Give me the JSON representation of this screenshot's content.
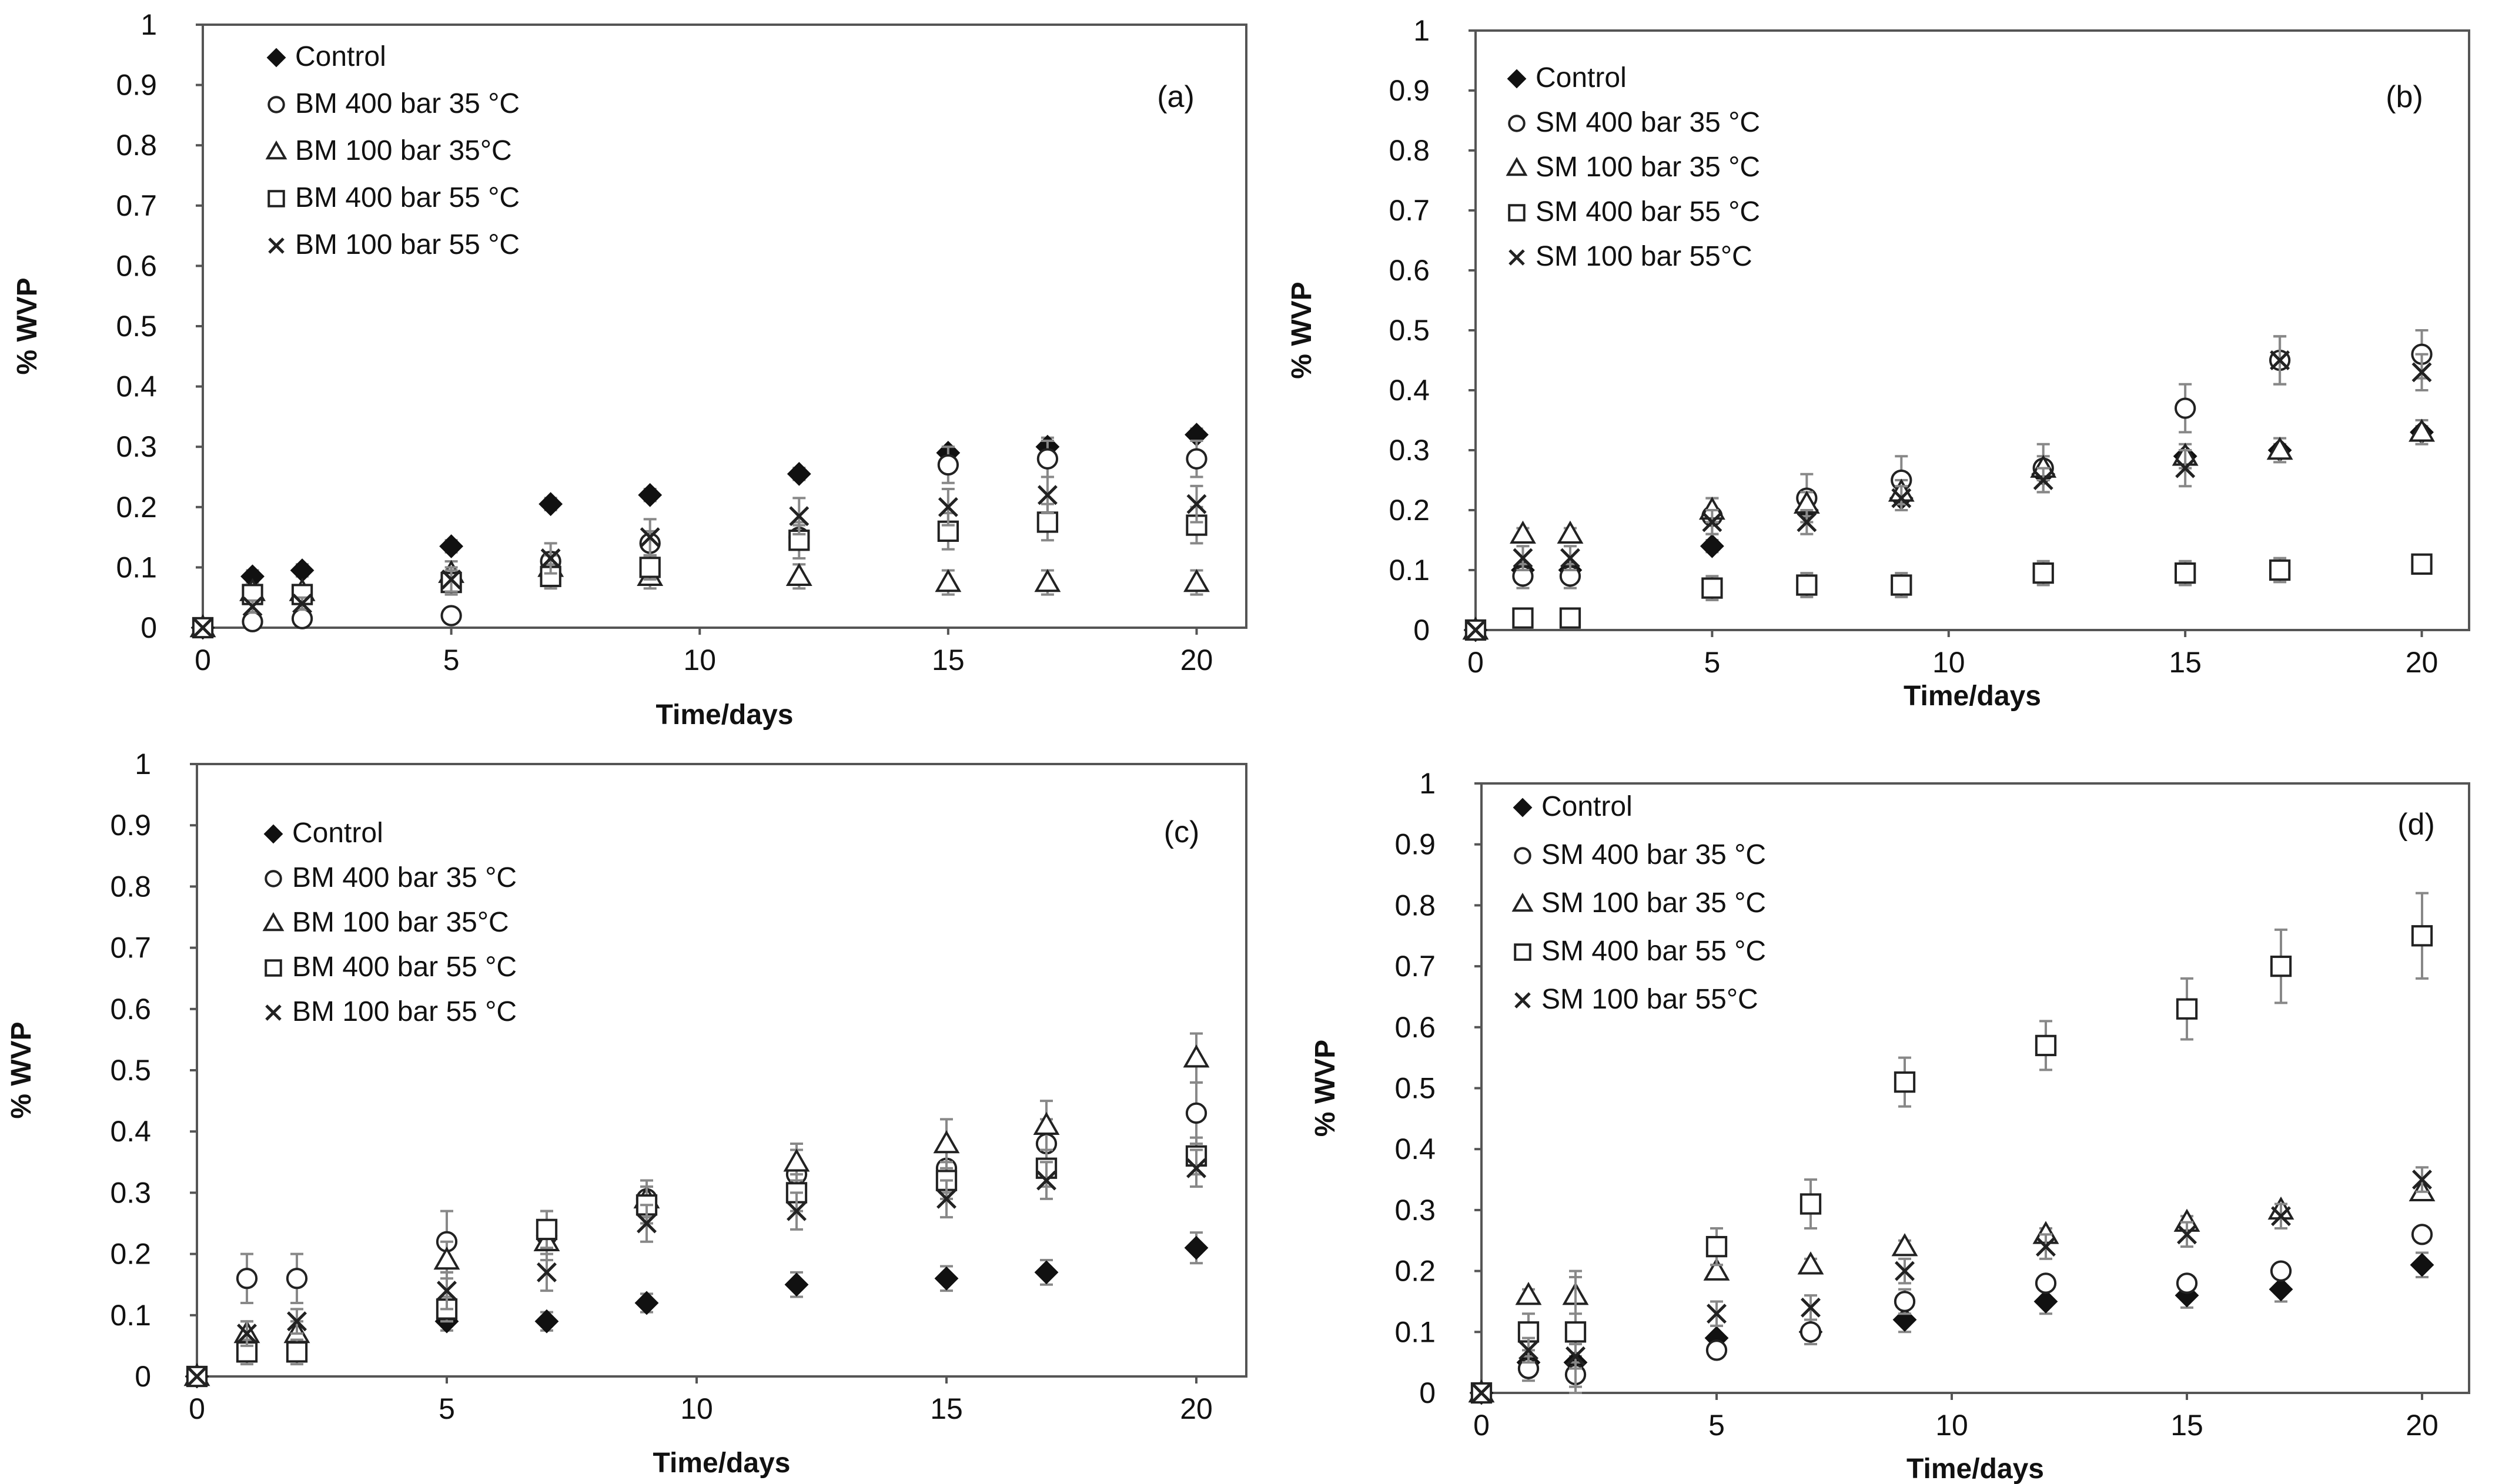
{
  "chart_data": [
    {
      "type": "scatter",
      "panel_label": "(a)",
      "xlabel": "Time/days",
      "ylabel": "% WVP",
      "xlim": [
        0,
        21
      ],
      "ylim": [
        0,
        1
      ],
      "x_ticks": [
        "0",
        "5",
        "10",
        "15",
        "20"
      ],
      "y_ticks": [
        "0",
        "0.1",
        "0.2",
        "0.3",
        "0.4",
        "0.5",
        "0.6",
        "0.7",
        "0.8",
        "0.9",
        "1"
      ],
      "legend_position": "top-left",
      "series": [
        {
          "name": "Control",
          "marker": "diamond-filled",
          "x": [
            0,
            1,
            2,
            5,
            7,
            9,
            12,
            15,
            17,
            20
          ],
          "values": [
            0,
            0.085,
            0.095,
            0.135,
            0.205,
            0.22,
            0.255,
            0.29,
            0.3,
            0.32
          ],
          "errors": [
            0,
            0.01,
            0.01,
            0.01,
            0.01,
            0.01,
            0.01,
            0.01,
            0.015,
            0.01
          ]
        },
        {
          "name": "BM 400 bar 35 °C",
          "marker": "circle-open",
          "x": [
            0,
            1,
            2,
            5,
            7,
            9,
            12,
            15,
            17,
            20
          ],
          "values": [
            0,
            0.01,
            0.015,
            0.02,
            0.11,
            0.14,
            0.15,
            0.27,
            0.28,
            0.28
          ],
          "errors": [
            0,
            0.005,
            0.005,
            0.005,
            0.015,
            0.02,
            0.02,
            0.03,
            0.03,
            0.03
          ]
        },
        {
          "name": "BM 100 bar 35°C",
          "marker": "triangle-open",
          "x": [
            0,
            1,
            2,
            5,
            7,
            9,
            12,
            15,
            17,
            20
          ],
          "values": [
            0,
            0.06,
            0.06,
            0.09,
            0.1,
            0.085,
            0.085,
            0.075,
            0.075,
            0.075
          ],
          "errors": [
            0,
            0.01,
            0.01,
            0.02,
            0.02,
            0.02,
            0.02,
            0.02,
            0.02,
            0.02
          ]
        },
        {
          "name": "BM 400 bar 55 °C",
          "marker": "square-open",
          "x": [
            0,
            1,
            2,
            5,
            7,
            9,
            12,
            15,
            17,
            20
          ],
          "values": [
            0,
            0.055,
            0.055,
            0.075,
            0.085,
            0.1,
            0.145,
            0.16,
            0.175,
            0.17
          ],
          "errors": [
            0,
            0.01,
            0.01,
            0.02,
            0.02,
            0.02,
            0.03,
            0.03,
            0.03,
            0.03
          ]
        },
        {
          "name": "BM 100 bar 55 °C",
          "marker": "x",
          "x": [
            0,
            1,
            2,
            5,
            7,
            9,
            12,
            15,
            17,
            20
          ],
          "values": [
            0,
            0.035,
            0.04,
            0.08,
            0.115,
            0.15,
            0.185,
            0.2,
            0.22,
            0.205
          ],
          "errors": [
            0,
            0.01,
            0.01,
            0.02,
            0.025,
            0.03,
            0.03,
            0.03,
            0.03,
            0.03
          ]
        }
      ]
    },
    {
      "type": "scatter",
      "panel_label": "(b)",
      "xlabel": "Time/days",
      "ylabel": "% WVP",
      "xlim": [
        0,
        21
      ],
      "ylim": [
        0,
        1
      ],
      "x_ticks": [
        "0",
        "5",
        "10",
        "15",
        "20"
      ],
      "y_ticks": [
        "0",
        "0.1",
        "0.2",
        "0.3",
        "0.4",
        "0.5",
        "0.6",
        "0.7",
        "0.8",
        "0.9",
        "1"
      ],
      "legend_position": "top-left",
      "series": [
        {
          "name": "Control",
          "marker": "diamond-filled",
          "x": [
            0,
            1,
            2,
            5,
            7,
            9,
            12,
            15,
            17,
            20
          ],
          "values": [
            0,
            0.1,
            0.1,
            0.14,
            0.2,
            0.22,
            0.26,
            0.29,
            0.3,
            0.33
          ],
          "errors": [
            0,
            0.01,
            0.01,
            0.01,
            0.01,
            0.01,
            0.01,
            0.01,
            0.01,
            0.01
          ]
        },
        {
          "name": "SM 400 bar 35 °C",
          "marker": "circle-open",
          "x": [
            0,
            1,
            2,
            5,
            7,
            9,
            12,
            15,
            17,
            20
          ],
          "values": [
            0,
            0.09,
            0.09,
            0.19,
            0.22,
            0.25,
            0.27,
            0.37,
            0.45,
            0.46
          ],
          "errors": [
            0,
            0.02,
            0.02,
            0.03,
            0.04,
            0.04,
            0.04,
            0.04,
            0.04,
            0.04
          ]
        },
        {
          "name": "SM 100 bar 35 °C",
          "marker": "triangle-open",
          "x": [
            0,
            1,
            2,
            5,
            7,
            9,
            12,
            15,
            17,
            20
          ],
          "values": [
            0,
            0.16,
            0.16,
            0.2,
            0.21,
            0.23,
            0.27,
            0.29,
            0.3,
            0.33
          ],
          "errors": [
            0,
            0.01,
            0.01,
            0.02,
            0.02,
            0.02,
            0.02,
            0.02,
            0.02,
            0.02
          ]
        },
        {
          "name": "SM 400 bar 55 °C",
          "marker": "square-open",
          "x": [
            0,
            1,
            2,
            5,
            7,
            9,
            12,
            15,
            17,
            20
          ],
          "values": [
            0,
            0.02,
            0.02,
            0.07,
            0.075,
            0.075,
            0.095,
            0.095,
            0.1,
            0.11
          ],
          "errors": [
            0,
            0.01,
            0.01,
            0.02,
            0.02,
            0.02,
            0.02,
            0.02,
            0.02,
            0.01
          ]
        },
        {
          "name": "SM 100 bar 55°C",
          "marker": "x",
          "x": [
            0,
            1,
            2,
            5,
            7,
            9,
            12,
            15,
            17,
            20
          ],
          "values": [
            0,
            0.12,
            0.12,
            0.18,
            0.18,
            0.22,
            0.25,
            0.27,
            0.45,
            0.43
          ],
          "errors": [
            0,
            0.02,
            0.02,
            0.02,
            0.02,
            0.02,
            0.02,
            0.03,
            0.04,
            0.03
          ]
        }
      ]
    },
    {
      "type": "scatter",
      "panel_label": "(c)",
      "xlabel": "Time/days",
      "ylabel": "% WVP",
      "xlim": [
        0,
        21
      ],
      "ylim": [
        0,
        1
      ],
      "x_ticks": [
        "0",
        "5",
        "10",
        "15",
        "20"
      ],
      "y_ticks": [
        "0",
        "0.1",
        "0.2",
        "0.3",
        "0.4",
        "0.5",
        "0.6",
        "0.7",
        "0.8",
        "0.9",
        "1"
      ],
      "legend_position": "top-left",
      "series": [
        {
          "name": "Control",
          "marker": "diamond-filled",
          "x": [
            0,
            5,
            7,
            9,
            12,
            15,
            17,
            20
          ],
          "values": [
            0,
            0.09,
            0.09,
            0.12,
            0.15,
            0.16,
            0.17,
            0.21
          ],
          "errors": [
            0,
            0.015,
            0.015,
            0.015,
            0.02,
            0.02,
            0.02,
            0.025
          ]
        },
        {
          "name": "BM 400 bar 35 °C",
          "marker": "circle-open",
          "x": [
            0,
            1,
            2,
            5,
            7,
            9,
            12,
            15,
            17,
            20
          ],
          "values": [
            0,
            0.16,
            0.16,
            0.22,
            0.23,
            0.29,
            0.33,
            0.34,
            0.38,
            0.43
          ],
          "errors": [
            0,
            0.04,
            0.04,
            0.05,
            0.04,
            0.03,
            0.04,
            0.04,
            0.04,
            0.05
          ]
        },
        {
          "name": "BM 100 bar 35°C",
          "marker": "triangle-open",
          "x": [
            0,
            1,
            2,
            5,
            7,
            9,
            12,
            15,
            17,
            20
          ],
          "values": [
            0,
            0.07,
            0.07,
            0.19,
            0.22,
            0.29,
            0.35,
            0.38,
            0.41,
            0.52
          ],
          "errors": [
            0,
            0.02,
            0.02,
            0.03,
            0.03,
            0.03,
            0.03,
            0.04,
            0.04,
            0.04
          ]
        },
        {
          "name": "BM 400 bar 55 °C",
          "marker": "square-open",
          "x": [
            0,
            1,
            2,
            5,
            7,
            9,
            12,
            15,
            17,
            20
          ],
          "values": [
            0,
            0.04,
            0.04,
            0.11,
            0.24,
            0.28,
            0.3,
            0.32,
            0.34,
            0.36
          ],
          "errors": [
            0,
            0.02,
            0.02,
            0.02,
            0.03,
            0.03,
            0.03,
            0.03,
            0.03,
            0.03
          ]
        },
        {
          "name": "BM 100 bar 55 °C",
          "marker": "x",
          "x": [
            0,
            1,
            2,
            5,
            7,
            9,
            12,
            15,
            17,
            20
          ],
          "values": [
            0,
            0.07,
            0.09,
            0.14,
            0.17,
            0.25,
            0.27,
            0.29,
            0.32,
            0.34
          ],
          "errors": [
            0,
            0.02,
            0.02,
            0.03,
            0.03,
            0.03,
            0.03,
            0.03,
            0.03,
            0.03
          ]
        }
      ]
    },
    {
      "type": "scatter",
      "panel_label": "(d)",
      "xlabel": "Time/days",
      "ylabel": "% WVP",
      "xlim": [
        0,
        21
      ],
      "ylim": [
        0,
        1
      ],
      "x_ticks": [
        "0",
        "5",
        "10",
        "15",
        "20"
      ],
      "y_ticks": [
        "0",
        "0.1",
        "0.2",
        "0.3",
        "0.4",
        "0.5",
        "0.6",
        "0.7",
        "0.8",
        "0.9",
        "1"
      ],
      "legend_position": "top-left",
      "series": [
        {
          "name": "Control",
          "marker": "diamond-filled",
          "x": [
            0,
            1,
            2,
            5,
            7,
            9,
            12,
            15,
            17,
            20
          ],
          "values": [
            0,
            0.05,
            0.05,
            0.09,
            0.1,
            0.12,
            0.15,
            0.16,
            0.17,
            0.21
          ],
          "errors": [
            0,
            0.01,
            0.01,
            0.02,
            0.02,
            0.02,
            0.02,
            0.02,
            0.02,
            0.02
          ]
        },
        {
          "name": "SM 400 bar 35 °C",
          "marker": "circle-open",
          "x": [
            0,
            1,
            2,
            5,
            7,
            9,
            12,
            15,
            17,
            20
          ],
          "values": [
            0,
            0.04,
            0.03,
            0.07,
            0.1,
            0.15,
            0.18,
            0.18,
            0.2,
            0.26
          ],
          "errors": [
            0,
            0.02,
            0.02,
            0.01,
            0.02,
            0.02,
            0.01,
            0.01,
            0.01,
            0.01
          ]
        },
        {
          "name": "SM 100 bar 35 °C",
          "marker": "triangle-open",
          "x": [
            0,
            1,
            2,
            5,
            7,
            9,
            12,
            15,
            17,
            20
          ],
          "values": [
            0,
            0.16,
            0.16,
            0.2,
            0.21,
            0.24,
            0.26,
            0.28,
            0.3,
            0.33
          ],
          "errors": [
            0,
            0.01,
            0.03,
            0.01,
            0.01,
            0.01,
            0.01,
            0.01,
            0.01,
            0.01
          ]
        },
        {
          "name": "SM 400 bar 55 °C",
          "marker": "square-open",
          "x": [
            0,
            1,
            2,
            5,
            7,
            9,
            12,
            15,
            17,
            20
          ],
          "values": [
            0,
            0.1,
            0.1,
            0.24,
            0.31,
            0.51,
            0.57,
            0.63,
            0.7,
            0.75
          ],
          "errors": [
            0,
            0.03,
            0.1,
            0.03,
            0.04,
            0.04,
            0.04,
            0.05,
            0.06,
            0.07
          ]
        },
        {
          "name": "SM 100 bar 55°C",
          "marker": "x",
          "x": [
            0,
            1,
            2,
            5,
            7,
            9,
            12,
            15,
            17,
            20
          ],
          "values": [
            0,
            0.07,
            0.06,
            0.13,
            0.14,
            0.2,
            0.24,
            0.26,
            0.29,
            0.35
          ],
          "errors": [
            0,
            0.02,
            0.02,
            0.02,
            0.02,
            0.02,
            0.02,
            0.02,
            0.02,
            0.02
          ]
        }
      ]
    }
  ]
}
